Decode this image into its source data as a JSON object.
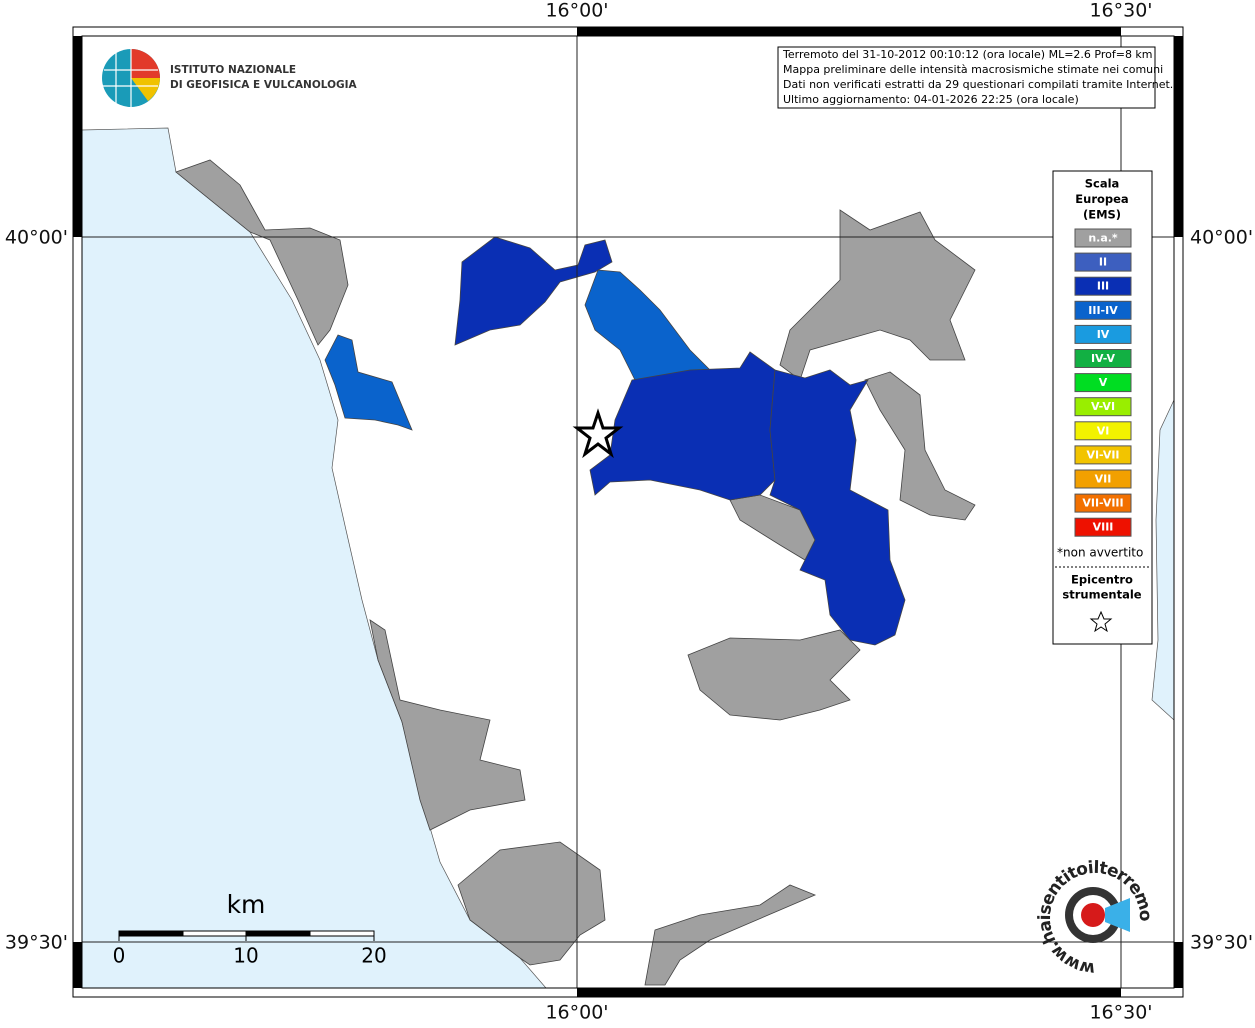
{
  "longitude_labels": [
    "16°00'",
    "16°30'"
  ],
  "latitude_labels": [
    "40°00'",
    "39°30'"
  ],
  "logo": {
    "line1": "ISTITUTO NAZIONALE",
    "line2": "DI GEOFISICA E VULCANOLOGIA"
  },
  "info": [
    "Terremoto del 31-10-2012 00:10:12 (ora locale) ML=2.6 Prof=8 km",
    "Mappa preliminare delle intensità macrosismiche stimate nei comuni",
    "Dati non verificati estratti da 29 questionari compilati tramite Internet.",
    "Ultimo aggiornamento: 04-01-2026 22:25 (ora locale)"
  ],
  "legend": {
    "title": [
      "Scala",
      "Europea",
      "(EMS)"
    ],
    "classes": [
      {
        "label": "n.a.*",
        "color": "#a0a0a0"
      },
      {
        "label": "II",
        "color": "#3d5fbf"
      },
      {
        "label": "III",
        "color": "#0a2fb4"
      },
      {
        "label": "III-IV",
        "color": "#0a63cc"
      },
      {
        "label": "IV",
        "color": "#1a9be0"
      },
      {
        "label": "IV-V",
        "color": "#12b043"
      },
      {
        "label": "V",
        "color": "#00dd22"
      },
      {
        "label": "V-VI",
        "color": "#99ee00"
      },
      {
        "label": "VI",
        "color": "#f2f200"
      },
      {
        "label": "VI-VII",
        "color": "#f2c400"
      },
      {
        "label": "VII",
        "color": "#f2a000"
      },
      {
        "label": "VII-VIII",
        "color": "#f27000"
      },
      {
        "label": "VIII",
        "color": "#ee1100"
      }
    ],
    "note": "*non avvertito",
    "epicenter": [
      "Epicentro",
      "strumentale"
    ]
  },
  "scale_bar": {
    "unit": "km",
    "ticks": [
      0,
      10,
      20
    ]
  },
  "watermark": "www.haisentitoilterremoto.it"
}
